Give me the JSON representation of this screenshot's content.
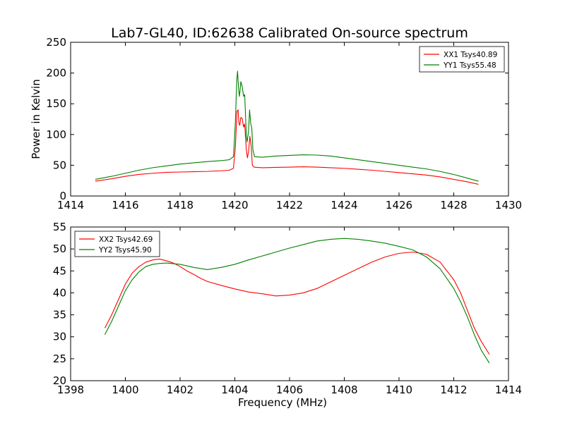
{
  "figure": {
    "title": "Lab7-GL40, ID:62638 Calibrated On-source spectrum"
  },
  "chart_data": [
    {
      "type": "line",
      "ylabel": "Power in Kelvin",
      "xlabel": "",
      "xlim": [
        1414,
        1430
      ],
      "ylim": [
        0,
        250
      ],
      "xticks": [
        "1414",
        "1416",
        "1418",
        "1420",
        "1422",
        "1424",
        "1426",
        "1428",
        "1430"
      ],
      "yticks": [
        "0",
        "50",
        "100",
        "150",
        "200",
        "250"
      ],
      "grid": false,
      "legend_position": "top-right",
      "series": [
        {
          "name": "XX1 Tsys40.89",
          "color": "#ff0000",
          "points": [
            [
              1414.9,
              24
            ],
            [
              1415.5,
              28
            ],
            [
              1416,
              32
            ],
            [
              1416.5,
              35
            ],
            [
              1417,
              37
            ],
            [
              1417.5,
              38.5
            ],
            [
              1418,
              39
            ],
            [
              1418.5,
              39.5
            ],
            [
              1419,
              40
            ],
            [
              1419.5,
              41
            ],
            [
              1419.8,
              42
            ],
            [
              1419.95,
              45
            ],
            [
              1420.02,
              80
            ],
            [
              1420.08,
              138
            ],
            [
              1420.12,
              140
            ],
            [
              1420.15,
              118
            ],
            [
              1420.18,
              115
            ],
            [
              1420.22,
              128
            ],
            [
              1420.27,
              126
            ],
            [
              1420.32,
              112
            ],
            [
              1420.36,
              117
            ],
            [
              1420.42,
              75
            ],
            [
              1420.46,
              62
            ],
            [
              1420.5,
              72
            ],
            [
              1420.55,
              97
            ],
            [
              1420.6,
              80
            ],
            [
              1420.64,
              50
            ],
            [
              1420.7,
              47
            ],
            [
              1421,
              46
            ],
            [
              1421.5,
              46.5
            ],
            [
              1422,
              47
            ],
            [
              1422.5,
              47.5
            ],
            [
              1423,
              47
            ],
            [
              1423.5,
              46
            ],
            [
              1424,
              45
            ],
            [
              1424.5,
              43.5
            ],
            [
              1425,
              42
            ],
            [
              1425.5,
              40
            ],
            [
              1426,
              38
            ],
            [
              1426.5,
              36
            ],
            [
              1427,
              34
            ],
            [
              1427.5,
              31
            ],
            [
              1428,
              27
            ],
            [
              1428.5,
              23
            ],
            [
              1428.9,
              19
            ]
          ]
        },
        {
          "name": "YY1 Tsys55.48",
          "color": "#008000",
          "points": [
            [
              1414.9,
              27
            ],
            [
              1415.5,
              32
            ],
            [
              1416,
              37
            ],
            [
              1416.5,
              42
            ],
            [
              1417,
              46
            ],
            [
              1417.5,
              49
            ],
            [
              1418,
              52
            ],
            [
              1418.5,
              54
            ],
            [
              1419,
              56
            ],
            [
              1419.5,
              57.5
            ],
            [
              1419.8,
              59
            ],
            [
              1419.95,
              64
            ],
            [
              1420.02,
              120
            ],
            [
              1420.07,
              188
            ],
            [
              1420.1,
              203
            ],
            [
              1420.14,
              172
            ],
            [
              1420.17,
              162
            ],
            [
              1420.22,
              186
            ],
            [
              1420.27,
              178
            ],
            [
              1420.32,
              162
            ],
            [
              1420.36,
              165
            ],
            [
              1420.42,
              98
            ],
            [
              1420.45,
              88
            ],
            [
              1420.5,
              105
            ],
            [
              1420.54,
              140
            ],
            [
              1420.58,
              118
            ],
            [
              1420.62,
              110
            ],
            [
              1420.66,
              75
            ],
            [
              1420.72,
              64
            ],
            [
              1421,
              63
            ],
            [
              1421.5,
              65
            ],
            [
              1422,
              66
            ],
            [
              1422.5,
              67
            ],
            [
              1423,
              66.5
            ],
            [
              1423.5,
              65
            ],
            [
              1424,
              62
            ],
            [
              1424.5,
              59
            ],
            [
              1425,
              56
            ],
            [
              1425.5,
              53
            ],
            [
              1426,
              50
            ],
            [
              1426.5,
              47
            ],
            [
              1427,
              44
            ],
            [
              1427.5,
              40
            ],
            [
              1428,
              35
            ],
            [
              1428.5,
              29
            ],
            [
              1428.9,
              24
            ]
          ]
        }
      ]
    },
    {
      "type": "line",
      "ylabel": "",
      "xlabel": "Frequency (MHz)",
      "xlim": [
        1398,
        1414
      ],
      "ylim": [
        20,
        55
      ],
      "xticks": [
        "1398",
        "1400",
        "1402",
        "1404",
        "1406",
        "1408",
        "1410",
        "1412",
        "1414"
      ],
      "yticks": [
        "20",
        "25",
        "30",
        "35",
        "40",
        "45",
        "50",
        "55"
      ],
      "grid": false,
      "legend_position": "top-left",
      "series": [
        {
          "name": "XX2 Tsys42.69",
          "color": "#ff0000",
          "points": [
            [
              1399.25,
              32
            ],
            [
              1399.5,
              35
            ],
            [
              1399.75,
              38.5
            ],
            [
              1400,
              42
            ],
            [
              1400.25,
              44.5
            ],
            [
              1400.5,
              46
            ],
            [
              1400.75,
              47
            ],
            [
              1401,
              47.5
            ],
            [
              1401.25,
              47.7
            ],
            [
              1401.5,
              47.3
            ],
            [
              1401.75,
              46.8
            ],
            [
              1402,
              46
            ],
            [
              1402.25,
              45
            ],
            [
              1402.5,
              44.2
            ],
            [
              1402.75,
              43.3
            ],
            [
              1403,
              42.6
            ],
            [
              1403.5,
              41.7
            ],
            [
              1404,
              40.9
            ],
            [
              1404.5,
              40.2
            ],
            [
              1405,
              39.8
            ],
            [
              1405.5,
              39.3
            ],
            [
              1406,
              39.5
            ],
            [
              1406.5,
              40
            ],
            [
              1407,
              41
            ],
            [
              1407.5,
              42.5
            ],
            [
              1408,
              44
            ],
            [
              1408.5,
              45.5
            ],
            [
              1409,
              47
            ],
            [
              1409.5,
              48.2
            ],
            [
              1410,
              49
            ],
            [
              1410.5,
              49.3
            ],
            [
              1411,
              48.8
            ],
            [
              1411.5,
              47
            ],
            [
              1412,
              43
            ],
            [
              1412.25,
              40
            ],
            [
              1412.5,
              36
            ],
            [
              1412.75,
              32
            ],
            [
              1413,
              29
            ],
            [
              1413.3,
              26
            ]
          ]
        },
        {
          "name": "YY2 Tsys45.90",
          "color": "#008000",
          "points": [
            [
              1399.25,
              30.5
            ],
            [
              1399.5,
              33.5
            ],
            [
              1399.75,
              37
            ],
            [
              1400,
              40.5
            ],
            [
              1400.25,
              43
            ],
            [
              1400.5,
              44.8
            ],
            [
              1400.75,
              46
            ],
            [
              1401,
              46.5
            ],
            [
              1401.25,
              46.7
            ],
            [
              1401.5,
              46.8
            ],
            [
              1402,
              46.5
            ],
            [
              1402.5,
              45.8
            ],
            [
              1403,
              45.3
            ],
            [
              1403.5,
              45.8
            ],
            [
              1404,
              46.5
            ],
            [
              1404.5,
              47.5
            ],
            [
              1405,
              48.4
            ],
            [
              1405.5,
              49.3
            ],
            [
              1406,
              50.2
            ],
            [
              1406.5,
              51
            ],
            [
              1407,
              51.8
            ],
            [
              1407.5,
              52.2
            ],
            [
              1408,
              52.4
            ],
            [
              1408.5,
              52.2
            ],
            [
              1409,
              51.8
            ],
            [
              1409.5,
              51.3
            ],
            [
              1410,
              50.6
            ],
            [
              1410.5,
              49.8
            ],
            [
              1411,
              48.2
            ],
            [
              1411.5,
              45.5
            ],
            [
              1412,
              41
            ],
            [
              1412.25,
              38
            ],
            [
              1412.5,
              34.5
            ],
            [
              1412.75,
              30.5
            ],
            [
              1413,
              27
            ],
            [
              1413.3,
              24
            ]
          ]
        }
      ]
    }
  ]
}
